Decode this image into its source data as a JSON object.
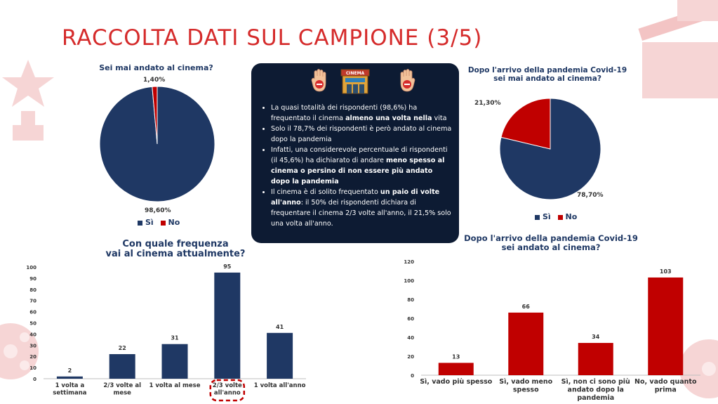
{
  "title": "RACCOLTA DATI SUL CAMPIONE (3/5)",
  "colors": {
    "navy": "#1f3864",
    "red": "#c00000",
    "title_red": "#d52b2b",
    "box_bg": "#0d1b33"
  },
  "icons": [
    "stop-hand-icon",
    "cinema-building-icon",
    "stop-hand-icon"
  ],
  "info_box": {
    "bullets": [
      [
        "La quasi totalità dei rispondenti (98,6%) ha frequentato il cinema ",
        "almeno una volta nella",
        " vita"
      ],
      [
        "Solo il 78,7% dei rispondenti è però andato al cinema dopo la pandemia",
        "",
        ""
      ],
      [
        "Infatti, una considerevole percentuale di rispondenti (il 45,6%) ha dichiarato di andare ",
        "meno spesso al cinema o persino di non essere più andato dopo la pandemia",
        ""
      ],
      [
        "Il cinema è di solito frequentato ",
        "un paio di volte all'anno",
        ": il 50% dei rispondenti dichiara di frequentare il cinema 2/3 volte all'anno,  il 21,5% solo una volta all'anno."
      ]
    ]
  },
  "chart_data": [
    {
      "type": "pie",
      "title": "Sei mai andato al cinema?",
      "labels": [
        "Sì",
        "No"
      ],
      "values": [
        98.6,
        1.4
      ],
      "value_labels": [
        "98,60%",
        "1,40%"
      ],
      "colors": [
        "#1f3864",
        "#c00000"
      ],
      "legend": "bottom"
    },
    {
      "type": "pie",
      "title": [
        "Dopo l'arrivo della pandemia Covid-19",
        "sei mai andato al cinema?"
      ],
      "labels": [
        "Sì",
        "No"
      ],
      "values": [
        78.7,
        21.3
      ],
      "value_labels": [
        "78,70%",
        "21,30%"
      ],
      "colors": [
        "#1f3864",
        "#c00000"
      ],
      "legend": "bottom"
    },
    {
      "type": "bar",
      "title": [
        "Con quale frequenza",
        "vai al cinema attualmente?"
      ],
      "categories": [
        [
          "1 volta a",
          "settimana"
        ],
        [
          "2/3 volte al",
          "mese"
        ],
        [
          "1 volta al mese"
        ],
        [
          "2/3 volte",
          "all'anno"
        ],
        [
          "1 volta all'anno"
        ]
      ],
      "values": [
        2,
        22,
        31,
        95,
        41
      ],
      "ylim": [
        0,
        100
      ],
      "yticks": [
        0,
        10,
        20,
        30,
        40,
        50,
        60,
        70,
        80,
        90,
        100
      ],
      "color": "#1f3864",
      "highlight_index": 3,
      "grid": false
    },
    {
      "type": "bar",
      "title": [
        "Dopo l'arrivo della pandemia Covid-19",
        "sei andato al cinema?"
      ],
      "categories": [
        [
          "Sì, vado più spesso"
        ],
        [
          "Sì, vado meno",
          "spesso"
        ],
        [
          "Sì, non ci sono più",
          "andato dopo la",
          "pandemia"
        ],
        [
          "No, vado quanto",
          "prima"
        ]
      ],
      "values": [
        13,
        66,
        34,
        103
      ],
      "ylim": [
        0,
        120
      ],
      "yticks": [
        0,
        20,
        40,
        60,
        80,
        100,
        120
      ],
      "color": "#c00000",
      "grid": false
    }
  ]
}
